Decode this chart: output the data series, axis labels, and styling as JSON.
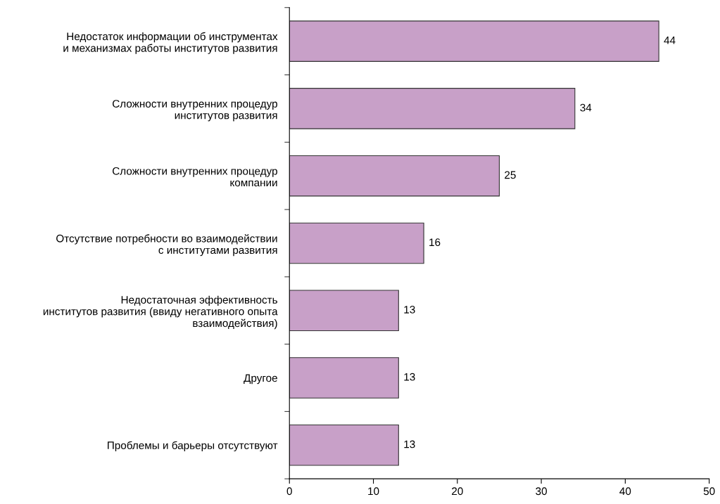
{
  "chart_data": {
    "type": "bar",
    "orientation": "horizontal",
    "categories": [
      "Недостаток информации об инструментах\nи механизмах работы институтов развития",
      "Сложности внутренних процедур\nинститутов развития",
      "Сложности внутренних процедур\nкомпании",
      "Отсутствие потребности во взаимодействии\nс институтами развития",
      "Недостаточная эффективность\nинститутов развития (ввиду негативного опыта\nвзаимодействия)",
      "Другое",
      "Проблемы и барьеры отсутствуют"
    ],
    "values": [
      44,
      34,
      25,
      16,
      13,
      13,
      13
    ],
    "color": "#c8a0c8",
    "xlim": [
      0,
      50
    ],
    "xticks": [
      0,
      10,
      20,
      30,
      40,
      50
    ],
    "data_labels": true,
    "grid": false,
    "legend": false
  }
}
